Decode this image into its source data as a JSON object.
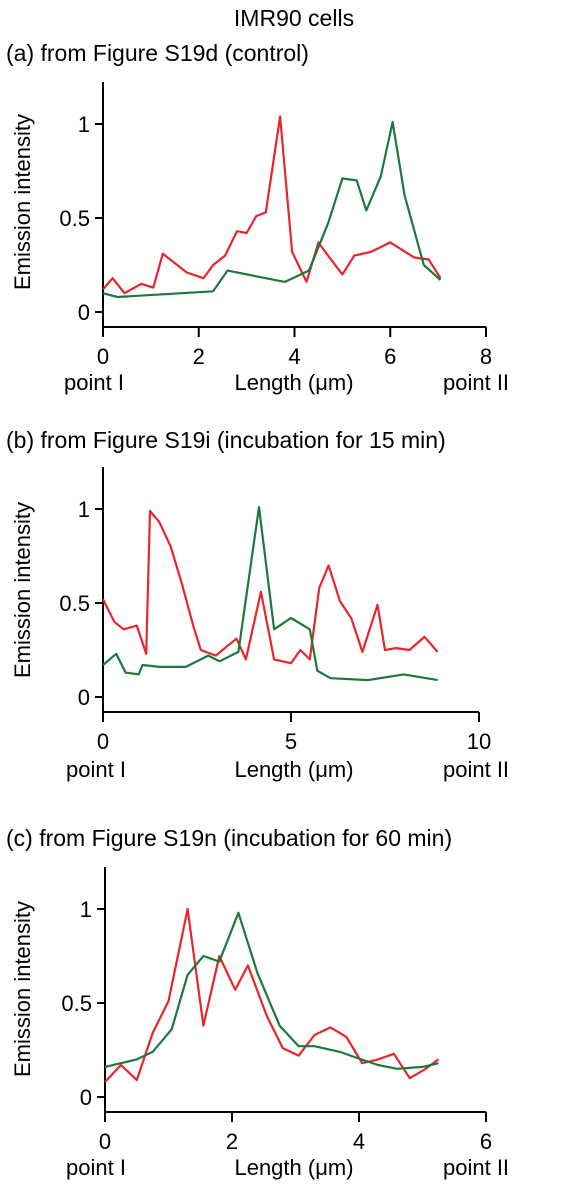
{
  "header": {
    "title": "IMR90 cells"
  },
  "chart_data": [
    {
      "type": "line",
      "title": "(a) from Figure S19d (control)",
      "xlabel": "Length (μm)",
      "ylabel": "Emission intensity",
      "x_start_label": "point I",
      "x_end_label": "point II",
      "xlim": [
        0,
        8
      ],
      "ylim": [
        0,
        1
      ],
      "xticks": [
        0,
        2,
        4,
        6,
        8
      ],
      "yticks": [
        0,
        0.5,
        1
      ],
      "ytick_labels": [
        "0",
        "0.5",
        "1"
      ],
      "grid": false,
      "colors": {
        "red": "#e8262a",
        "green": "#1b7a3a"
      },
      "series": [
        {
          "color": "#e8262a",
          "x": [
            0,
            0.2,
            0.45,
            0.8,
            1.05,
            1.25,
            1.75,
            2.1,
            2.3,
            2.55,
            2.8,
            3.0,
            3.2,
            3.4,
            3.7,
            3.95,
            4.25,
            4.5,
            4.7,
            5.0,
            5.25,
            5.6,
            6.0,
            6.5,
            6.8,
            7.05
          ],
          "y": [
            0.12,
            0.18,
            0.1,
            0.15,
            0.13,
            0.31,
            0.21,
            0.18,
            0.25,
            0.3,
            0.43,
            0.42,
            0.51,
            0.53,
            1.04,
            0.32,
            0.16,
            0.37,
            0.3,
            0.2,
            0.3,
            0.32,
            0.37,
            0.29,
            0.28,
            0.18
          ]
        },
        {
          "color": "#1b7a3a",
          "x": [
            0,
            0.3,
            2.3,
            2.6,
            3.8,
            4.3,
            4.7,
            5.0,
            5.3,
            5.5,
            5.8,
            6.05,
            6.3,
            6.7,
            7.05
          ],
          "y": [
            0.1,
            0.08,
            0.11,
            0.22,
            0.16,
            0.22,
            0.47,
            0.71,
            0.7,
            0.54,
            0.72,
            1.01,
            0.62,
            0.25,
            0.17
          ]
        }
      ]
    },
    {
      "type": "line",
      "title": "(b) from Figure S19i (incubation for 15 min)",
      "xlabel": "Length (μm)",
      "ylabel": "Emission intensity",
      "x_start_label": "point I",
      "x_end_label": "point II",
      "xlim": [
        0,
        10
      ],
      "ylim": [
        0,
        1
      ],
      "xticks": [
        0,
        5,
        10
      ],
      "yticks": [
        0,
        0.5,
        1
      ],
      "ytick_labels": [
        "0",
        "0.5",
        "1"
      ],
      "grid": false,
      "colors": {
        "red": "#e8262a",
        "green": "#1b7a3a"
      },
      "series": [
        {
          "color": "#e8262a",
          "x": [
            0,
            0.3,
            0.55,
            0.9,
            1.15,
            1.25,
            1.5,
            1.8,
            2.1,
            2.4,
            2.6,
            3.0,
            3.3,
            3.55,
            3.8,
            4.1,
            4.2,
            4.55,
            5.0,
            5.25,
            5.5,
            5.75,
            6.0,
            6.3,
            6.6,
            6.9,
            7.3,
            7.5,
            7.8,
            8.15,
            8.55,
            8.9
          ],
          "y": [
            0.52,
            0.4,
            0.36,
            0.38,
            0.23,
            0.99,
            0.93,
            0.8,
            0.6,
            0.38,
            0.25,
            0.22,
            0.27,
            0.31,
            0.2,
            0.47,
            0.56,
            0.2,
            0.18,
            0.25,
            0.2,
            0.58,
            0.7,
            0.51,
            0.42,
            0.24,
            0.49,
            0.25,
            0.26,
            0.25,
            0.32,
            0.24
          ]
        },
        {
          "color": "#1b7a3a",
          "x": [
            0,
            0.35,
            0.6,
            0.95,
            1.05,
            1.5,
            2.2,
            2.8,
            3.1,
            3.6,
            4.15,
            4.55,
            5.0,
            5.5,
            5.7,
            6.05,
            7.05,
            8.0,
            8.9
          ],
          "y": [
            0.17,
            0.23,
            0.13,
            0.12,
            0.17,
            0.16,
            0.16,
            0.22,
            0.19,
            0.24,
            1.01,
            0.36,
            0.42,
            0.36,
            0.14,
            0.1,
            0.09,
            0.12,
            0.09
          ]
        }
      ]
    },
    {
      "type": "line",
      "title": "(c) from Figure S19n (incubation for 60 min)",
      "xlabel": "Length (μm)",
      "ylabel": "Emission intensity",
      "x_start_label": "point I",
      "x_end_label": "point II",
      "xlim": [
        0,
        6
      ],
      "ylim": [
        0,
        1
      ],
      "xticks": [
        0,
        2,
        4,
        6
      ],
      "yticks": [
        0,
        0.5,
        1
      ],
      "ytick_labels": [
        "0",
        "0.5",
        "1"
      ],
      "grid": false,
      "colors": {
        "red": "#e8262a",
        "green": "#1b7a3a"
      },
      "series": [
        {
          "color": "#e8262a",
          "x": [
            0,
            0.25,
            0.5,
            0.75,
            1.0,
            1.3,
            1.55,
            1.8,
            2.05,
            2.25,
            2.55,
            2.8,
            3.05,
            3.3,
            3.55,
            3.8,
            4.05,
            4.3,
            4.55,
            4.8,
            5.05,
            5.25
          ],
          "y": [
            0.08,
            0.17,
            0.09,
            0.34,
            0.51,
            1.0,
            0.38,
            0.75,
            0.57,
            0.7,
            0.43,
            0.26,
            0.22,
            0.33,
            0.37,
            0.32,
            0.18,
            0.2,
            0.23,
            0.1,
            0.15,
            0.2
          ]
        },
        {
          "color": "#1b7a3a",
          "x": [
            0,
            0.5,
            0.75,
            1.05,
            1.3,
            1.55,
            1.8,
            2.1,
            2.4,
            2.75,
            3.05,
            3.3,
            3.7,
            3.95,
            4.3,
            4.6,
            5.0,
            5.25
          ],
          "y": [
            0.16,
            0.2,
            0.24,
            0.36,
            0.65,
            0.75,
            0.72,
            0.98,
            0.66,
            0.38,
            0.27,
            0.27,
            0.24,
            0.21,
            0.17,
            0.15,
            0.16,
            0.18
          ]
        }
      ]
    }
  ]
}
